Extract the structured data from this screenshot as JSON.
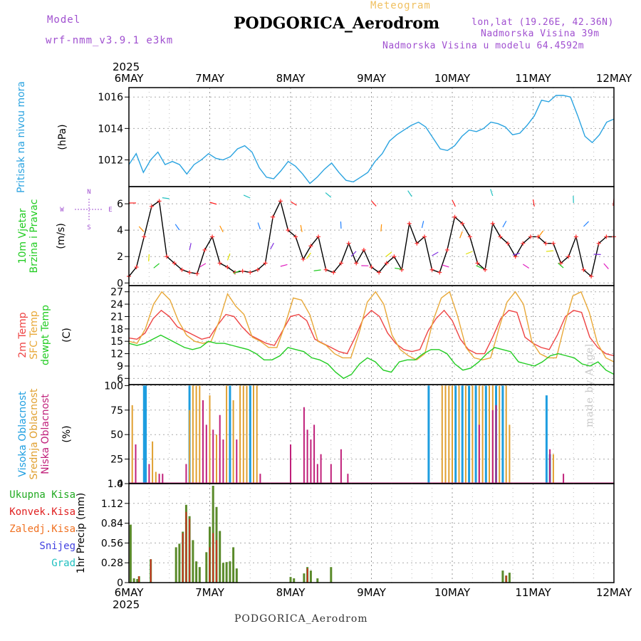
{
  "header": {
    "title": "PODGORICA_Aerodrom",
    "subtitle": "Meteogram",
    "model_label": "Model",
    "model_value": "wrf-nmm_v3.9.1 e3km",
    "location": "lon,lat (19.26E, 42.36N)",
    "elevation": "Nadmorska Visina 39m",
    "model_elevation": "Nadmorska Visina u modelu 64.4592m",
    "year_top": "2025",
    "year_bottom": "2025",
    "footer": "PODGORICA_Aerodrom",
    "watermark": "made by Angel"
  },
  "chart_data": {
    "x_ticks": [
      "6MAY",
      "7MAY",
      "8MAY",
      "9MAY",
      "10MAY",
      "11MAY",
      "12MAY"
    ],
    "x_range_hours": [
      0,
      144
    ],
    "colors": {
      "pressure": "#2aa3e0",
      "wind_speed": "#000000",
      "wind_speed_marker": "#ff3030",
      "temp_2m": "#ee4444",
      "temp_sfc": "#e8a838",
      "dewpoint": "#22cc22",
      "cloud_high": "#1e9ee0",
      "cloud_mid": "#e0a030",
      "cloud_low": "#c0207a",
      "precip_total": "#5a8a2a",
      "precip_conv": "#e02020"
    },
    "charts": [
      {
        "id": "pressure",
        "type": "line",
        "label_lines": [
          "Pritisak na nivou mora"
        ],
        "unit": "(hPa)",
        "y_ticks": [
          1012,
          1014,
          1016
        ],
        "ylim": [
          1010.3,
          1016.6
        ],
        "series": [
          {
            "name": "Pritisak",
            "values": [
              1011.7,
              1012.4,
              1011.2,
              1012.0,
              1012.5,
              1011.7,
              1011.9,
              1011.7,
              1011.1,
              1011.7,
              1012.0,
              1012.4,
              1012.1,
              1012.0,
              1012.2,
              1012.7,
              1012.9,
              1012.5,
              1011.5,
              1010.9,
              1010.8,
              1011.3,
              1011.9,
              1011.6,
              1011.1,
              1010.5,
              1010.9,
              1011.4,
              1011.8,
              1011.2,
              1010.7,
              1010.6,
              1010.9,
              1011.2,
              1011.9,
              1012.4,
              1013.2,
              1013.6,
              1013.9,
              1014.2,
              1014.4,
              1014.1,
              1013.4,
              1012.7,
              1012.6,
              1012.9,
              1013.5,
              1013.9,
              1013.8,
              1014.0,
              1014.4,
              1014.3,
              1014.1,
              1013.6,
              1013.7,
              1014.2,
              1014.8,
              1015.8,
              1015.7,
              1016.1,
              1016.1,
              1016.0,
              1014.8,
              1013.5,
              1013.1,
              1013.6,
              1014.4,
              1014.6
            ]
          }
        ]
      },
      {
        "id": "wind",
        "type": "line",
        "label_lines": [
          "10m Vjetar",
          "Brzina i Pravac"
        ],
        "unit": "(m/s)",
        "y_ticks": [
          0,
          2,
          4,
          6
        ],
        "ylim": [
          -0.2,
          7.3
        ],
        "compass": {
          "n": "N",
          "w": "W",
          "e": "E",
          "s": "S"
        },
        "series": [
          {
            "name": "Brzina",
            "values": [
              0.5,
              1.2,
              3.5,
              5.8,
              6.2,
              2.0,
              1.5,
              1.0,
              0.8,
              0.7,
              2.5,
              3.5,
              1.5,
              1.2,
              0.8,
              0.9,
              0.8,
              1.0,
              1.5,
              5.0,
              6.2,
              4.0,
              3.5,
              1.8,
              2.8,
              3.5,
              1.0,
              0.8,
              1.5,
              3.0,
              1.5,
              2.5,
              1.2,
              0.8,
              1.5,
              2.0,
              1.0,
              4.5,
              3.0,
              3.5,
              1.0,
              0.8,
              2.5,
              5.0,
              4.5,
              3.5,
              1.5,
              1.0,
              4.5,
              3.5,
              3.0,
              2.0,
              3.0,
              3.5,
              3.5,
              3.0,
              3.0,
              1.5,
              2.0,
              3.5,
              1.0,
              0.5,
              3.0,
              3.5,
              3.5
            ]
          }
        ]
      },
      {
        "id": "temperature",
        "type": "line",
        "label_lines": [
          "2m Temp",
          "SFC Temp",
          "dewpt Temp"
        ],
        "unit": "(C)",
        "y_ticks": [
          6,
          9,
          12,
          15,
          18,
          21,
          24,
          27
        ],
        "ylim": [
          4.5,
          28.5
        ],
        "series": [
          {
            "name": "2m Temp",
            "values": [
              15.8,
              15.5,
              17.0,
              20.5,
              22.5,
              21.0,
              18.5,
              17.5,
              16.5,
              15.5,
              16.0,
              19.0,
              21.5,
              21.0,
              18.5,
              16.5,
              15.5,
              14.5,
              14.0,
              17.5,
              21.0,
              21.5,
              20.0,
              15.5,
              14.5,
              13.5,
              12.5,
              12.0,
              16.0,
              20.5,
              22.5,
              21.0,
              17.0,
              14.5,
              13.0,
              12.5,
              13.0,
              17.5,
              20.5,
              22.5,
              20.0,
              15.5,
              13.0,
              12.0,
              12.0,
              16.0,
              20.5,
              22.5,
              22.0,
              16.0,
              14.5,
              13.5,
              13.0,
              16.5,
              21.0,
              22.5,
              22.0,
              16.0,
              13.5,
              12.0,
              11.5
            ]
          },
          {
            "name": "SFC Temp",
            "values": [
              15.0,
              14.5,
              18.0,
              24.0,
              27.0,
              25.0,
              20.0,
              16.5,
              15.0,
              14.5,
              15.0,
              20.0,
              26.5,
              23.5,
              21.5,
              16.0,
              15.0,
              13.5,
              13.5,
              19.0,
              25.5,
              25.0,
              21.5,
              15.0,
              14.0,
              12.0,
              11.0,
              11.0,
              17.0,
              24.5,
              27.0,
              24.0,
              16.5,
              13.0,
              11.5,
              10.5,
              12.0,
              20.0,
              25.5,
              27.0,
              21.0,
              13.5,
              11.0,
              10.5,
              11.0,
              18.0,
              24.5,
              27.0,
              24.0,
              15.0,
              12.0,
              11.0,
              11.0,
              19.0,
              26.0,
              27.0,
              22.0,
              14.5,
              11.0,
              10.0
            ]
          },
          {
            "name": "dewpt Temp",
            "values": [
              14.5,
              14.0,
              14.5,
              15.5,
              16.5,
              15.5,
              14.5,
              13.5,
              13.0,
              13.5,
              15.0,
              14.5,
              14.5,
              14.0,
              13.5,
              13.0,
              12.0,
              10.5,
              10.5,
              11.5,
              13.5,
              13.0,
              12.5,
              11.0,
              10.5,
              9.5,
              7.5,
              6.0,
              7.0,
              9.5,
              11.0,
              10.0,
              8.0,
              7.5,
              10.0,
              10.5,
              10.5,
              12.0,
              13.0,
              13.0,
              12.0,
              9.5,
              8.0,
              8.5,
              10.0,
              12.0,
              13.5,
              13.0,
              12.5,
              10.0,
              9.5,
              9.0,
              10.0,
              11.5,
              12.0,
              11.5,
              11.0,
              9.5,
              9.0,
              10.0,
              8.0,
              7.0
            ]
          }
        ]
      },
      {
        "id": "cloud",
        "type": "bar",
        "label_lines": [
          "Visoka Oblacnost",
          "Srednja Oblacnost",
          "Niska Oblacnost"
        ],
        "unit": "(%)",
        "y_ticks": [
          0,
          25,
          50,
          75,
          100
        ],
        "ylim": [
          0,
          101
        ],
        "series": [
          {
            "name": "Visoka Oblacnost",
            "bars": [
              [
                4.5,
                100
              ],
              [
                5,
                100
              ],
              [
                18,
                100
              ],
              [
                30,
                100
              ],
              [
                36,
                100
              ],
              [
                89,
                100
              ],
              [
                97,
                100
              ],
              [
                99,
                100
              ],
              [
                101,
                100
              ],
              [
                103,
                100
              ],
              [
                106,
                100
              ],
              [
                109,
                100
              ],
              [
                111,
                100
              ],
              [
                124,
                90
              ],
              [
                125,
                30
              ]
            ]
          },
          {
            "name": "Srednja Oblacnost",
            "bars": [
              [
                1,
                80
              ],
              [
                2,
                15
              ],
              [
                7,
                43
              ],
              [
                8,
                12
              ],
              [
                18,
                75
              ],
              [
                19,
                100
              ],
              [
                20,
                100
              ],
              [
                21,
                100
              ],
              [
                24,
                90
              ],
              [
                26,
                50
              ],
              [
                29,
                100
              ],
              [
                31,
                85
              ],
              [
                33,
                100
              ],
              [
                34,
                100
              ],
              [
                35,
                100
              ],
              [
                37,
                100
              ],
              [
                38,
                100
              ],
              [
                93,
                100
              ],
              [
                94,
                100
              ],
              [
                95,
                100
              ],
              [
                96,
                100
              ],
              [
                98,
                100
              ],
              [
                100,
                100
              ],
              [
                102,
                100
              ],
              [
                104,
                100
              ],
              [
                105,
                100
              ],
              [
                107,
                100
              ],
              [
                108,
                100
              ],
              [
                110,
                100
              ],
              [
                112,
                100
              ],
              [
                113,
                60
              ],
              [
                126,
                30
              ]
            ]
          },
          {
            "name": "Niska Oblacnost",
            "bars": [
              [
                2,
                40
              ],
              [
                6,
                20
              ],
              [
                9,
                10
              ],
              [
                10,
                10
              ],
              [
                17,
                20
              ],
              [
                22,
                85
              ],
              [
                23,
                60
              ],
              [
                25,
                55
              ],
              [
                27,
                70
              ],
              [
                28,
                45
              ],
              [
                32,
                45
              ],
              [
                39,
                10
              ],
              [
                48,
                40
              ],
              [
                52,
                78
              ],
              [
                53,
                55
              ],
              [
                54,
                45
              ],
              [
                55,
                60
              ],
              [
                56,
                20
              ],
              [
                57,
                30
              ],
              [
                60,
                20
              ],
              [
                63,
                35
              ],
              [
                65,
                10
              ],
              [
                104,
                60
              ],
              [
                108,
                75
              ],
              [
                109,
                80
              ],
              [
                125,
                35
              ],
              [
                129,
                10
              ]
            ]
          }
        ]
      },
      {
        "id": "precip",
        "type": "bar",
        "label_lines": [
          "1hr Precip"
        ],
        "unit": "(mm)",
        "y_ticks": [
          0,
          0.28,
          0.56,
          0.84,
          1.12,
          1.4
        ],
        "ylim": [
          0,
          1.4
        ],
        "legend": [
          {
            "label": "Ukupna Kisa",
            "color": "#22aa22"
          },
          {
            "label": "Konvek.Kisa",
            "color": "#e02020"
          },
          {
            "label": "Zaledj.Kisa",
            "color": "#f07020"
          },
          {
            "label": "Snijeg",
            "color": "#4040e0"
          },
          {
            "label": "Grad",
            "color": "#20c0c0"
          }
        ],
        "series": [
          {
            "name": "Ukupna Kisa",
            "bars": [
              [
                0.5,
                0.82
              ],
              [
                1.5,
                0.06
              ],
              [
                2.5,
                0.05
              ],
              [
                3,
                0.09
              ],
              [
                6.5,
                0.33
              ],
              [
                14,
                0.5
              ],
              [
                15,
                0.55
              ],
              [
                16,
                0.72
              ],
              [
                17,
                1.1
              ],
              [
                18,
                0.94
              ],
              [
                19,
                0.6
              ],
              [
                20,
                0.3
              ],
              [
                21,
                0.22
              ],
              [
                23,
                0.43
              ],
              [
                24,
                0.79
              ],
              [
                25,
                1.37
              ],
              [
                26,
                1.07
              ],
              [
                27,
                0.73
              ],
              [
                28,
                0.28
              ],
              [
                29,
                0.29
              ],
              [
                30,
                0.3
              ],
              [
                31,
                0.5
              ],
              [
                32,
                0.2
              ],
              [
                48,
                0.08
              ],
              [
                49,
                0.06
              ],
              [
                52,
                0.13
              ],
              [
                53,
                0.22
              ],
              [
                54,
                0.17
              ],
              [
                56,
                0.06
              ],
              [
                60,
                0.22
              ],
              [
                111,
                0.17
              ],
              [
                112,
                0.1
              ],
              [
                113,
                0.14
              ]
            ]
          },
          {
            "name": "Konvek.Kisa",
            "bars": [
              [
                3,
                0.09
              ],
              [
                6.5,
                0.33
              ],
              [
                16,
                0.7
              ],
              [
                17,
                1.0
              ],
              [
                18,
                0.9
              ],
              [
                24,
                0.5
              ],
              [
                25,
                0.7
              ],
              [
                26,
                0.6
              ],
              [
                53,
                0.2
              ],
              [
                112,
                0.1
              ]
            ]
          }
        ]
      }
    ]
  }
}
